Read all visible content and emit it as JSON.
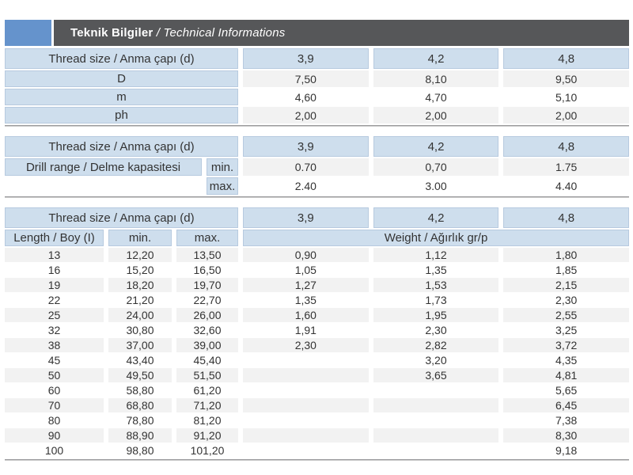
{
  "title": {
    "tr": "Teknik Bilgiler",
    "sep": " / ",
    "en": "Technical Informations"
  },
  "colors": {
    "accent_blue": "#6593cc",
    "bar_gray": "#565759",
    "cell_blue": "#cedeed",
    "stripe_gray": "#f2f2f2",
    "rule_dark": "#4b4b4d"
  },
  "table1": {
    "header": [
      "Thread size / Anma çapı (d)",
      "3,9",
      "4,2",
      "4,8"
    ],
    "rows": [
      [
        "D",
        "7,50",
        "8,10",
        "9,50"
      ],
      [
        "m",
        "4,60",
        "4,70",
        "5,10"
      ],
      [
        "ph",
        "2,00",
        "2,00",
        "2,00"
      ]
    ]
  },
  "table2": {
    "header": [
      "Thread size / Anma çapı (d)",
      "3,9",
      "4,2",
      "4,8"
    ],
    "group_label": "Drill range / Delme kapasitesi",
    "rows": [
      [
        "min.",
        "0.70",
        "0,70",
        "1.75"
      ],
      [
        "max.",
        "2.40",
        "3.00",
        "4.40"
      ]
    ]
  },
  "table3": {
    "header": [
      "Thread size / Anma çapı (d)",
      "3,9",
      "4,2",
      "4,8"
    ],
    "subheader": [
      "Length / Boy (I)",
      "min.",
      "max.",
      "Weight / Ağırlık gr/p"
    ],
    "rows": [
      [
        "13",
        "12,20",
        "13,50",
        "0,90",
        "1,12",
        "1,80"
      ],
      [
        "16",
        "15,20",
        "16,50",
        "1,05",
        "1,35",
        "1,85"
      ],
      [
        "19",
        "18,20",
        "19,70",
        "1,27",
        "1,53",
        "2,15"
      ],
      [
        "22",
        "21,20",
        "22,70",
        "1,35",
        "1,73",
        "2,30"
      ],
      [
        "25",
        "24,00",
        "26,00",
        "1,60",
        "1,95",
        "2,55"
      ],
      [
        "32",
        "30,80",
        "32,60",
        "1,91",
        "2,30",
        "3,25"
      ],
      [
        "38",
        "37,00",
        "39,00",
        "2,30",
        "2,82",
        "3,72"
      ],
      [
        "45",
        "43,40",
        "45,40",
        "",
        "3,20",
        "4,35"
      ],
      [
        "50",
        "49,50",
        "51,50",
        "",
        "3,65",
        "4,81"
      ],
      [
        "60",
        "58,80",
        "61,20",
        "",
        "",
        "5,65"
      ],
      [
        "70",
        "68,80",
        "71,20",
        "",
        "",
        "6,45"
      ],
      [
        "80",
        "78,80",
        "81,20",
        "",
        "",
        "7,38"
      ],
      [
        "90",
        "88,90",
        "91,20",
        "",
        "",
        "8,30"
      ],
      [
        "100",
        "98,80",
        "101,20",
        "",
        "",
        "9,18"
      ]
    ]
  }
}
